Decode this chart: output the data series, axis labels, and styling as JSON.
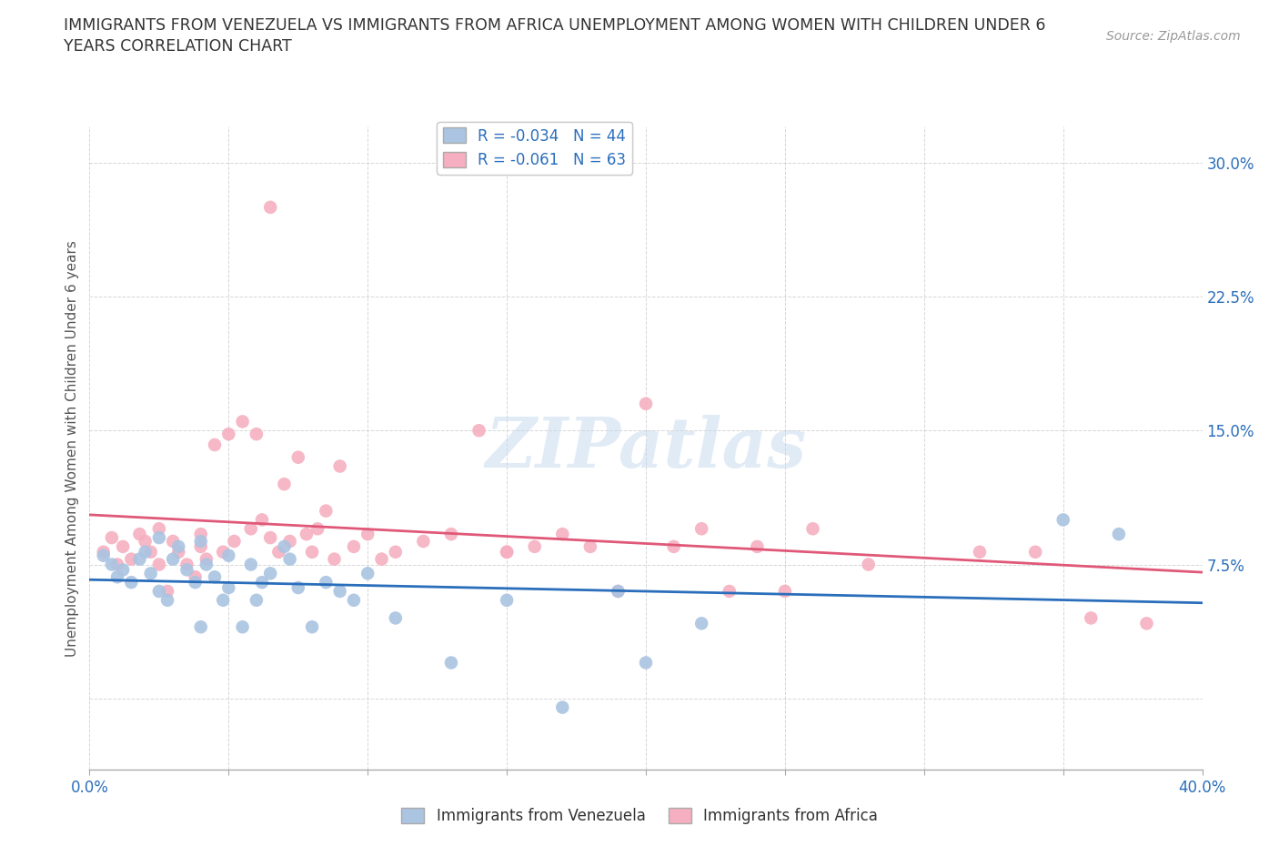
{
  "title_line1": "IMMIGRANTS FROM VENEZUELA VS IMMIGRANTS FROM AFRICA UNEMPLOYMENT AMONG WOMEN WITH CHILDREN UNDER 6",
  "title_line2": "YEARS CORRELATION CHART",
  "source": "Source: ZipAtlas.com",
  "ylabel": "Unemployment Among Women with Children Under 6 years",
  "xmin": 0.0,
  "xmax": 0.4,
  "ymin": -0.04,
  "ymax": 0.32,
  "yticks": [
    0.0,
    0.075,
    0.15,
    0.225,
    0.3
  ],
  "ytick_labels": [
    "",
    "7.5%",
    "15.0%",
    "22.5%",
    "30.0%"
  ],
  "xticks": [
    0.0,
    0.05,
    0.1,
    0.15,
    0.2,
    0.25,
    0.3,
    0.35,
    0.4
  ],
  "xtick_labels": [
    "0.0%",
    "",
    "",
    "",
    "",
    "",
    "",
    "",
    "40.0%"
  ],
  "color_venezuela": "#aac4e2",
  "color_africa": "#f5afc0",
  "line_color_venezuela": "#2a6ebb",
  "line_color_africa": "#e05878",
  "R_venezuela": -0.034,
  "N_venezuela": 44,
  "R_africa": -0.061,
  "N_africa": 63,
  "watermark": "ZIPatlas",
  "background_color": "#ffffff",
  "grid_color": "#cccccc",
  "title_color": "#333333",
  "axis_label_color": "#555555",
  "tick_label_color": "#2a6ebb",
  "venezuela_x": [
    0.005,
    0.008,
    0.01,
    0.012,
    0.015,
    0.018,
    0.02,
    0.022,
    0.025,
    0.025,
    0.028,
    0.03,
    0.032,
    0.035,
    0.038,
    0.04,
    0.04,
    0.042,
    0.045,
    0.048,
    0.05,
    0.05,
    0.055,
    0.058,
    0.06,
    0.062,
    0.065,
    0.07,
    0.072,
    0.075,
    0.08,
    0.085,
    0.09,
    0.095,
    0.1,
    0.11,
    0.13,
    0.15,
    0.17,
    0.19,
    0.2,
    0.22,
    0.35,
    0.37
  ],
  "venezuela_y": [
    0.08,
    0.075,
    0.068,
    0.072,
    0.065,
    0.078,
    0.082,
    0.07,
    0.06,
    0.09,
    0.055,
    0.078,
    0.085,
    0.072,
    0.065,
    0.04,
    0.088,
    0.075,
    0.068,
    0.055,
    0.062,
    0.08,
    0.04,
    0.075,
    0.055,
    0.065,
    0.07,
    0.085,
    0.078,
    0.062,
    0.04,
    0.065,
    0.06,
    0.055,
    0.07,
    0.045,
    0.02,
    0.055,
    -0.005,
    0.06,
    0.02,
    0.042,
    0.1,
    0.092
  ],
  "africa_x": [
    0.005,
    0.008,
    0.01,
    0.012,
    0.015,
    0.018,
    0.02,
    0.022,
    0.025,
    0.025,
    0.028,
    0.03,
    0.032,
    0.035,
    0.038,
    0.04,
    0.04,
    0.042,
    0.045,
    0.048,
    0.05,
    0.052,
    0.055,
    0.058,
    0.06,
    0.062,
    0.065,
    0.068,
    0.07,
    0.072,
    0.075,
    0.078,
    0.08,
    0.082,
    0.085,
    0.088,
    0.09,
    0.095,
    0.1,
    0.105,
    0.11,
    0.12,
    0.13,
    0.14,
    0.15,
    0.16,
    0.17,
    0.18,
    0.19,
    0.2,
    0.21,
    0.22,
    0.23,
    0.24,
    0.25,
    0.26,
    0.28,
    0.32,
    0.34,
    0.36,
    0.38,
    0.15,
    0.065
  ],
  "africa_y": [
    0.082,
    0.09,
    0.075,
    0.085,
    0.078,
    0.092,
    0.088,
    0.082,
    0.075,
    0.095,
    0.06,
    0.088,
    0.082,
    0.075,
    0.068,
    0.085,
    0.092,
    0.078,
    0.142,
    0.082,
    0.148,
    0.088,
    0.155,
    0.095,
    0.148,
    0.1,
    0.09,
    0.082,
    0.12,
    0.088,
    0.135,
    0.092,
    0.082,
    0.095,
    0.105,
    0.078,
    0.13,
    0.085,
    0.092,
    0.078,
    0.082,
    0.088,
    0.092,
    0.15,
    0.082,
    0.085,
    0.092,
    0.085,
    0.06,
    0.165,
    0.085,
    0.095,
    0.06,
    0.085,
    0.06,
    0.095,
    0.075,
    0.082,
    0.082,
    0.045,
    0.042,
    0.082,
    0.275
  ]
}
